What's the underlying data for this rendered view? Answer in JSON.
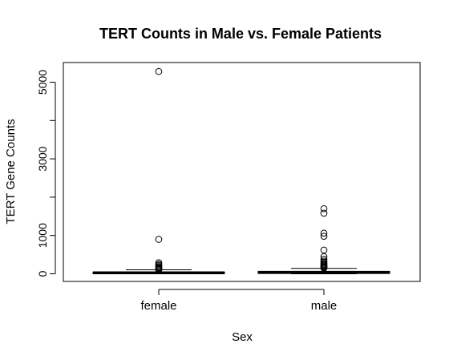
{
  "chart_data": {
    "type": "box",
    "title": "TERT Counts in Male vs. Female Patients",
    "xlabel": "Sex",
    "ylabel": "TERT Gene Counts",
    "ylim": [
      -200,
      5500
    ],
    "yticks": [
      0,
      1000,
      3000,
      5000
    ],
    "yticks_minor": [
      0,
      1000,
      2000,
      3000,
      4000,
      5000
    ],
    "categories": [
      "female",
      "male"
    ],
    "boxes": [
      {
        "name": "female",
        "q1": 8,
        "median": 25,
        "q3": 45,
        "whisker_low": 0,
        "whisker_high": 105,
        "outliers": [
          5280,
          900,
          290,
          250,
          220,
          190,
          170,
          150,
          130,
          120,
          115,
          110
        ]
      },
      {
        "name": "male",
        "q1": 10,
        "median": 35,
        "q3": 65,
        "whisker_low": 0,
        "whisker_high": 140,
        "outliers": [
          1700,
          1580,
          1060,
          980,
          620,
          450,
          380,
          330,
          300,
          270,
          245,
          220,
          200,
          180,
          165,
          155,
          150
        ]
      }
    ],
    "grid": false
  }
}
